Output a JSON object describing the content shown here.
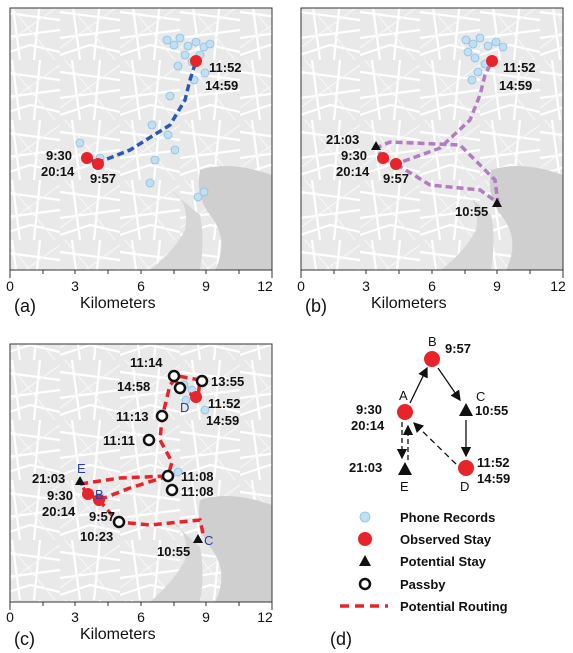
{
  "panels": {
    "a": {
      "tag": "(a)",
      "xlabel": "Kilometers",
      "ticks": [
        "0",
        "3",
        "6",
        "9",
        "12"
      ],
      "labels": [
        "11:52",
        "14:59",
        "9:30",
        "20:14",
        "9:57"
      ]
    },
    "b": {
      "tag": "(b)",
      "xlabel": "Kilometers",
      "ticks": [
        "0",
        "3",
        "6",
        "9",
        "12"
      ],
      "labels": [
        "11:52",
        "14:59",
        "21:03",
        "9:30",
        "20:14",
        "9:57",
        "10:55"
      ]
    },
    "c": {
      "tag": "(c)",
      "xlabel": "Kilometers",
      "ticks": [
        "0",
        "3",
        "6",
        "9",
        "12"
      ],
      "labels": [
        "11:14",
        "13:55",
        "14:58",
        "11:52",
        "14:59",
        "11:13",
        "11:11",
        "21:03",
        "11:08",
        "11:08",
        "9:30",
        "20:14",
        "9:57",
        "10:23",
        "10:55"
      ],
      "letters": [
        "E",
        "D",
        "B",
        "C"
      ]
    },
    "d": {
      "tag": "(d)",
      "nodes": {
        "A": {
          "letter": "A",
          "time1": "9:30",
          "time2": "20:14"
        },
        "B": {
          "letter": "B",
          "time1": "9:57"
        },
        "C": {
          "letter": "C",
          "time1": "10:55"
        },
        "D": {
          "letter": "D",
          "time1": "11:52",
          "time2": "14:59"
        },
        "E": {
          "letter": "E",
          "time1": "21:03"
        }
      }
    }
  },
  "legend": {
    "items": [
      "Phone Records",
      "Observed Stay",
      "Potential Stay",
      "Passby",
      "Potential Routing"
    ]
  },
  "colors": {
    "observed_stay": "#e8232a",
    "phone_record": "#bfe0f4",
    "route_a": "#2a58b5",
    "route_b": "#b57bc2",
    "route_c": "#e8232a",
    "map_bg": "#e9e9e9"
  }
}
